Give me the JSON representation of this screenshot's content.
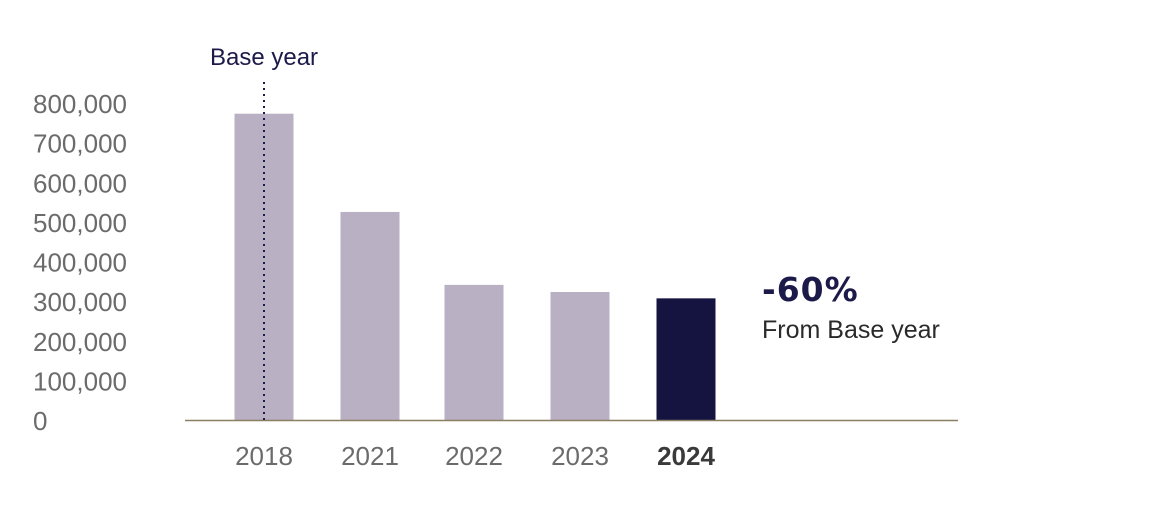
{
  "chart_data": {
    "type": "bar",
    "categories": [
      "2018",
      "2021",
      "2022",
      "2023",
      "2024"
    ],
    "values": [
      773000,
      525000,
      341000,
      323000,
      307000
    ],
    "highlight_category": "2024",
    "ylim": [
      0,
      800000
    ],
    "yticks": [
      "0",
      "100,000",
      "200,000",
      "300,000",
      "400,000",
      "500,000",
      "600,000",
      "700,000",
      "800,000"
    ],
    "ytick_values": [
      0,
      100000,
      200000,
      300000,
      400000,
      500000,
      600000,
      700000,
      800000
    ],
    "grid": false,
    "base_year_marker": {
      "category": "2018",
      "label": "Base year"
    },
    "annotation": {
      "value": "-60%",
      "caption": "From Base year"
    },
    "colors": {
      "bar": "#b9b0c3",
      "highlight_bar": "#151340",
      "axis": "#8a7f62",
      "marker": "#1c1a48"
    }
  }
}
